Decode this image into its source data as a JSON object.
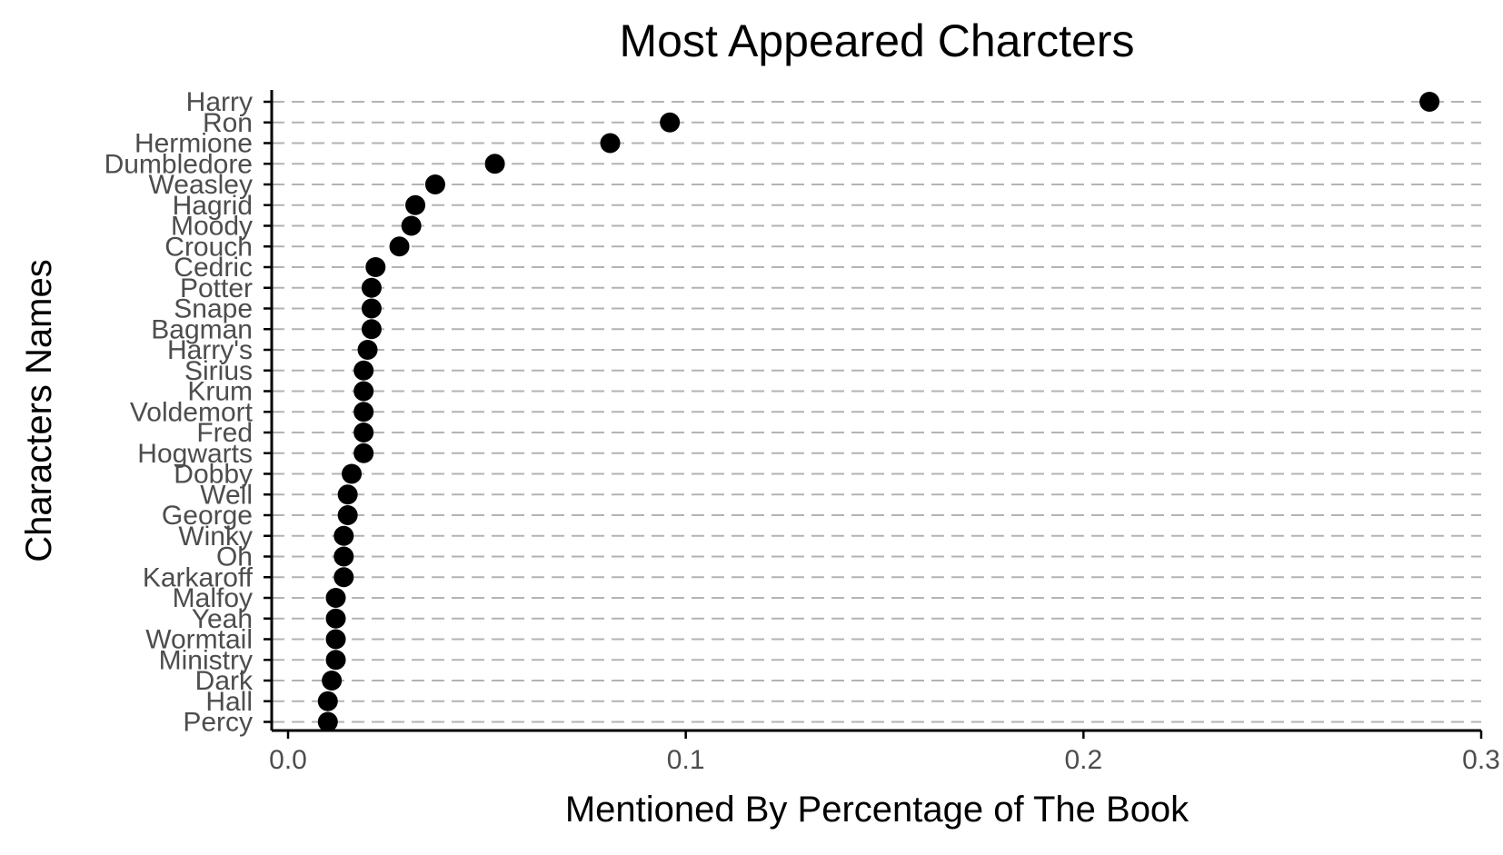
{
  "chart_data": {
    "type": "scatter",
    "title": "Most Appeared Charcters",
    "xlabel": "Mentioned By Percentage of The Book",
    "ylabel": "Characters Names",
    "xlim": [
      0.0,
      0.3
    ],
    "x_ticks": [
      "0.0",
      "0.1",
      "0.2",
      "0.3"
    ],
    "grid": "horizontal dashed",
    "legend": "none",
    "point_color": "#000000",
    "categories": [
      "Harry",
      "Ron",
      "Hermione",
      "Dumbledore",
      "Weasley",
      "Hagrid",
      "Moody",
      "Crouch",
      "Cedric",
      "Potter",
      "Snape",
      "Bagman",
      "Harry's",
      "Sirius",
      "Krum",
      "Voldemort",
      "Fred",
      "Hogwarts",
      "Dobby",
      "Well",
      "George",
      "Winky",
      "Oh",
      "Karkaroff",
      "Malfoy",
      "Yeah",
      "Wormtail",
      "Ministry",
      "Dark",
      "Hall",
      "Percy"
    ],
    "values": [
      0.287,
      0.096,
      0.081,
      0.052,
      0.037,
      0.032,
      0.031,
      0.028,
      0.022,
      0.021,
      0.021,
      0.021,
      0.02,
      0.019,
      0.019,
      0.019,
      0.019,
      0.019,
      0.016,
      0.015,
      0.015,
      0.014,
      0.014,
      0.014,
      0.012,
      0.012,
      0.012,
      0.012,
      0.011,
      0.01,
      0.01
    ]
  }
}
